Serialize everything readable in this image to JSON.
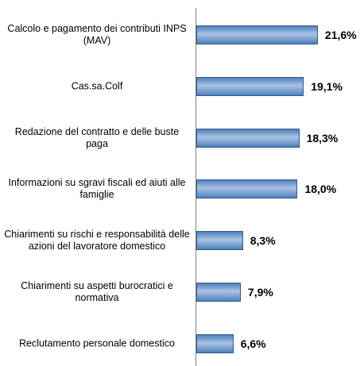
{
  "chart_data": {
    "type": "bar",
    "orientation": "horizontal",
    "categories": [
      "Calcolo e pagamento dei contributi INPS (MAV)",
      "Cas.sa.Colf",
      "Redazione del contratto e delle buste paga",
      "Informazioni su sgravi fiscali ed aiuti alle famiglie",
      "Chiarimenti su rischi e responsabilità delle azioni del lavoratore domestico",
      "Chiarimenti su aspetti burocratici e normativa",
      "Reclutamento personale domestico"
    ],
    "values": [
      21.6,
      19.1,
      18.3,
      18.0,
      8.3,
      7.9,
      6.6
    ],
    "value_labels": [
      "21,6%",
      "19,1%",
      "18,3%",
      "18,0%",
      "8,3%",
      "7,9%",
      "6,6%"
    ],
    "color": "#4f81bd"
  }
}
